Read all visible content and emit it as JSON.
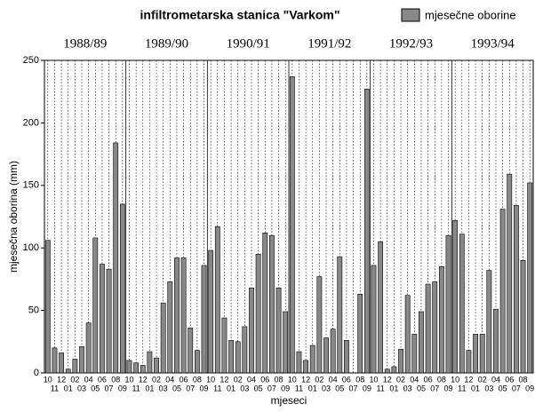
{
  "chart_data": {
    "type": "bar",
    "title": "infiltrometarska stanica \"Varkom\"",
    "xlabel": "mjeseci",
    "ylabel": "mjesečna oborina (mm)",
    "periods": [
      "1988/89",
      "1989/90",
      "1990/91",
      "1991/92",
      "1992/93",
      "1993/94"
    ],
    "categories": [
      "10",
      "11",
      "12",
      "01",
      "02",
      "03",
      "04",
      "05",
      "06",
      "07",
      "08",
      "09",
      "10",
      "11",
      "12",
      "01",
      "02",
      "03",
      "04",
      "05",
      "06",
      "07",
      "08",
      "09",
      "10",
      "11",
      "12",
      "01",
      "02",
      "03",
      "04",
      "05",
      "06",
      "07",
      "08",
      "09",
      "10",
      "11",
      "12",
      "01",
      "02",
      "03",
      "04",
      "05",
      "06",
      "07",
      "08",
      "09",
      "10",
      "11",
      "12",
      "01",
      "02",
      "03",
      "04",
      "05",
      "06",
      "07",
      "08",
      "09",
      "10",
      "11",
      "12",
      "01",
      "02",
      "03",
      "04",
      "05",
      "06",
      "07",
      "08",
      "09"
    ],
    "series": [
      {
        "name": "mjesečne oborine",
        "color": "#888888",
        "values": [
          106,
          20,
          16,
          3,
          11,
          21,
          40,
          108,
          87,
          83,
          184,
          135,
          10,
          8,
          6,
          17,
          12,
          56,
          73,
          92,
          92,
          36,
          18,
          86,
          98,
          117,
          44,
          26,
          25,
          37,
          68,
          95,
          112,
          110,
          68,
          49,
          237,
          17,
          10,
          22,
          77,
          28,
          35,
          93,
          26,
          0,
          63,
          227,
          86,
          105,
          3,
          5,
          19,
          62,
          31,
          49,
          71,
          73,
          85,
          110,
          122,
          111,
          18,
          31,
          31,
          82,
          51,
          131,
          159,
          134,
          90,
          152
        ]
      }
    ],
    "ylim": [
      0,
      250
    ],
    "yticks": [
      0,
      50,
      100,
      150,
      200,
      250
    ],
    "grid": true
  }
}
